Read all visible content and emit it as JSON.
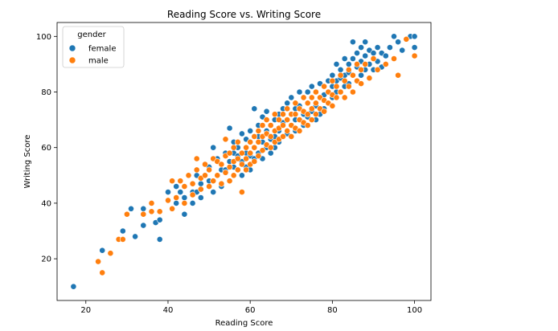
{
  "chart_data": {
    "type": "scatter",
    "title": "Reading Score vs. Writing Score",
    "xlabel": "Reading Score",
    "ylabel": "Writing Score",
    "xlim": [
      13,
      104
    ],
    "ylim": [
      5,
      105
    ],
    "xticks": [
      20,
      40,
      60,
      80,
      100
    ],
    "yticks": [
      20,
      40,
      60,
      80,
      100
    ],
    "grid": false,
    "legend": {
      "title": "gender",
      "placement": "top-left"
    },
    "series": [
      {
        "name": "female",
        "color": "#1f77b4",
        "points": [
          [
            17,
            10
          ],
          [
            24,
            23
          ],
          [
            29,
            30
          ],
          [
            31,
            38
          ],
          [
            32,
            28
          ],
          [
            34,
            38
          ],
          [
            34,
            32
          ],
          [
            37,
            33
          ],
          [
            38,
            27
          ],
          [
            38,
            34
          ],
          [
            40,
            44
          ],
          [
            42,
            46
          ],
          [
            42,
            40
          ],
          [
            43,
            44
          ],
          [
            44,
            36
          ],
          [
            44,
            42
          ],
          [
            46,
            40
          ],
          [
            46,
            44
          ],
          [
            47,
            50
          ],
          [
            47,
            44
          ],
          [
            48,
            42
          ],
          [
            48,
            47
          ],
          [
            50,
            53
          ],
          [
            50,
            48
          ],
          [
            51,
            60
          ],
          [
            51,
            44
          ],
          [
            52,
            50
          ],
          [
            52,
            56
          ],
          [
            53,
            46
          ],
          [
            53,
            52
          ],
          [
            54,
            58
          ],
          [
            54,
            52
          ],
          [
            55,
            67
          ],
          [
            55,
            55
          ],
          [
            56,
            58
          ],
          [
            56,
            53
          ],
          [
            56,
            62
          ],
          [
            57,
            57
          ],
          [
            57,
            60
          ],
          [
            57,
            52
          ],
          [
            58,
            55
          ],
          [
            58,
            65
          ],
          [
            58,
            50
          ],
          [
            59,
            58
          ],
          [
            59,
            63
          ],
          [
            59,
            53
          ],
          [
            60,
            62
          ],
          [
            60,
            57
          ],
          [
            60,
            66
          ],
          [
            60,
            52
          ],
          [
            61,
            74
          ],
          [
            61,
            60
          ],
          [
            61,
            56
          ],
          [
            62,
            64
          ],
          [
            62,
            58
          ],
          [
            62,
            68
          ],
          [
            63,
            71
          ],
          [
            63,
            62
          ],
          [
            63,
            56
          ],
          [
            64,
            66
          ],
          [
            64,
            60
          ],
          [
            64,
            73
          ],
          [
            65,
            68
          ],
          [
            65,
            63
          ],
          [
            65,
            58
          ],
          [
            66,
            70
          ],
          [
            66,
            64
          ],
          [
            66,
            60
          ],
          [
            67,
            72
          ],
          [
            67,
            66
          ],
          [
            67,
            62
          ],
          [
            68,
            74
          ],
          [
            68,
            69
          ],
          [
            68,
            64
          ],
          [
            69,
            76
          ],
          [
            69,
            70
          ],
          [
            69,
            65
          ],
          [
            70,
            72
          ],
          [
            70,
            68
          ],
          [
            70,
            78
          ],
          [
            71,
            74
          ],
          [
            71,
            70
          ],
          [
            71,
            66
          ],
          [
            72,
            80
          ],
          [
            72,
            75
          ],
          [
            72,
            70
          ],
          [
            73,
            78
          ],
          [
            73,
            72
          ],
          [
            73,
            68
          ],
          [
            74,
            80
          ],
          [
            74,
            76
          ],
          [
            74,
            71
          ],
          [
            75,
            82
          ],
          [
            75,
            78
          ],
          [
            75,
            73
          ],
          [
            76,
            80
          ],
          [
            76,
            75
          ],
          [
            76,
            70
          ],
          [
            77,
            83
          ],
          [
            77,
            78
          ],
          [
            77,
            72
          ],
          [
            78,
            82
          ],
          [
            78,
            79
          ],
          [
            78,
            74
          ],
          [
            79,
            84
          ],
          [
            79,
            80
          ],
          [
            79,
            76
          ],
          [
            80,
            86
          ],
          [
            80,
            82
          ],
          [
            80,
            78
          ],
          [
            81,
            90
          ],
          [
            81,
            84
          ],
          [
            81,
            80
          ],
          [
            82,
            88
          ],
          [
            82,
            85
          ],
          [
            82,
            80
          ],
          [
            83,
            92
          ],
          [
            83,
            86
          ],
          [
            83,
            82
          ],
          [
            84,
            90
          ],
          [
            84,
            87
          ],
          [
            84,
            83
          ],
          [
            85,
            98
          ],
          [
            85,
            92
          ],
          [
            85,
            86
          ],
          [
            86,
            94
          ],
          [
            86,
            89
          ],
          [
            86,
            84
          ],
          [
            87,
            96
          ],
          [
            87,
            91
          ],
          [
            87,
            86
          ],
          [
            88,
            98
          ],
          [
            88,
            93
          ],
          [
            88,
            88
          ],
          [
            89,
            95
          ],
          [
            89,
            90
          ],
          [
            90,
            94
          ],
          [
            90,
            88
          ],
          [
            91,
            96
          ],
          [
            91,
            91
          ],
          [
            92,
            94
          ],
          [
            92,
            89
          ],
          [
            93,
            93
          ],
          [
            94,
            96
          ],
          [
            95,
            100
          ],
          [
            96,
            98
          ],
          [
            97,
            95
          ],
          [
            99,
            100
          ],
          [
            100,
            100
          ],
          [
            100,
            96
          ]
        ]
      },
      {
        "name": "male",
        "color": "#ff7f0e",
        "points": [
          [
            23,
            19
          ],
          [
            24,
            15
          ],
          [
            26,
            22
          ],
          [
            28,
            27
          ],
          [
            29,
            27
          ],
          [
            30,
            36
          ],
          [
            34,
            36
          ],
          [
            36,
            40
          ],
          [
            36,
            37
          ],
          [
            38,
            37
          ],
          [
            40,
            41
          ],
          [
            41,
            38
          ],
          [
            41,
            48
          ],
          [
            42,
            42
          ],
          [
            43,
            48
          ],
          [
            44,
            46
          ],
          [
            44,
            40
          ],
          [
            45,
            50
          ],
          [
            46,
            47
          ],
          [
            46,
            43
          ],
          [
            47,
            56
          ],
          [
            47,
            52
          ],
          [
            48,
            49
          ],
          [
            48,
            45
          ],
          [
            49,
            54
          ],
          [
            49,
            50
          ],
          [
            50,
            52
          ],
          [
            50,
            46
          ],
          [
            51,
            56
          ],
          [
            51,
            48
          ],
          [
            52,
            55
          ],
          [
            52,
            50
          ],
          [
            53,
            54
          ],
          [
            53,
            47
          ],
          [
            54,
            63
          ],
          [
            54,
            57
          ],
          [
            54,
            51
          ],
          [
            55,
            58
          ],
          [
            55,
            53
          ],
          [
            55,
            48
          ],
          [
            56,
            60
          ],
          [
            56,
            55
          ],
          [
            56,
            50
          ],
          [
            57,
            62
          ],
          [
            57,
            56
          ],
          [
            57,
            52
          ],
          [
            58,
            44
          ],
          [
            58,
            58
          ],
          [
            58,
            54
          ],
          [
            59,
            60
          ],
          [
            59,
            56
          ],
          [
            59,
            52
          ],
          [
            60,
            62
          ],
          [
            60,
            58
          ],
          [
            60,
            54
          ],
          [
            61,
            64
          ],
          [
            61,
            60
          ],
          [
            61,
            55
          ],
          [
            62,
            66
          ],
          [
            62,
            62
          ],
          [
            62,
            57
          ],
          [
            63,
            68
          ],
          [
            63,
            64
          ],
          [
            63,
            59
          ],
          [
            64,
            70
          ],
          [
            64,
            65
          ],
          [
            64,
            61
          ],
          [
            65,
            68
          ],
          [
            65,
            64
          ],
          [
            65,
            60
          ],
          [
            66,
            72
          ],
          [
            66,
            66
          ],
          [
            66,
            62
          ],
          [
            67,
            70
          ],
          [
            67,
            67
          ],
          [
            67,
            63
          ],
          [
            68,
            72
          ],
          [
            68,
            68
          ],
          [
            68,
            64
          ],
          [
            69,
            74
          ],
          [
            69,
            70
          ],
          [
            69,
            66
          ],
          [
            70,
            72
          ],
          [
            70,
            68
          ],
          [
            70,
            64
          ],
          [
            71,
            76
          ],
          [
            71,
            72
          ],
          [
            71,
            67
          ],
          [
            72,
            74
          ],
          [
            72,
            70
          ],
          [
            72,
            66
          ],
          [
            73,
            78
          ],
          [
            73,
            73
          ],
          [
            73,
            69
          ],
          [
            74,
            76
          ],
          [
            74,
            72
          ],
          [
            74,
            68
          ],
          [
            75,
            78
          ],
          [
            75,
            74
          ],
          [
            75,
            70
          ],
          [
            76,
            80
          ],
          [
            76,
            76
          ],
          [
            76,
            72
          ],
          [
            77,
            78
          ],
          [
            77,
            74
          ],
          [
            78,
            82
          ],
          [
            78,
            77
          ],
          [
            78,
            73
          ],
          [
            79,
            80
          ],
          [
            79,
            76
          ],
          [
            80,
            84
          ],
          [
            80,
            79
          ],
          [
            80,
            75
          ],
          [
            81,
            82
          ],
          [
            81,
            78
          ],
          [
            82,
            86
          ],
          [
            82,
            80
          ],
          [
            83,
            84
          ],
          [
            83,
            78
          ],
          [
            84,
            88
          ],
          [
            84,
            82
          ],
          [
            85,
            86
          ],
          [
            85,
            80
          ],
          [
            86,
            90
          ],
          [
            86,
            84
          ],
          [
            87,
            88
          ],
          [
            87,
            83
          ],
          [
            88,
            90
          ],
          [
            89,
            85
          ],
          [
            90,
            92
          ],
          [
            91,
            88
          ],
          [
            93,
            90
          ],
          [
            95,
            92
          ],
          [
            96,
            86
          ],
          [
            98,
            99
          ],
          [
            100,
            93
          ]
        ]
      }
    ]
  }
}
